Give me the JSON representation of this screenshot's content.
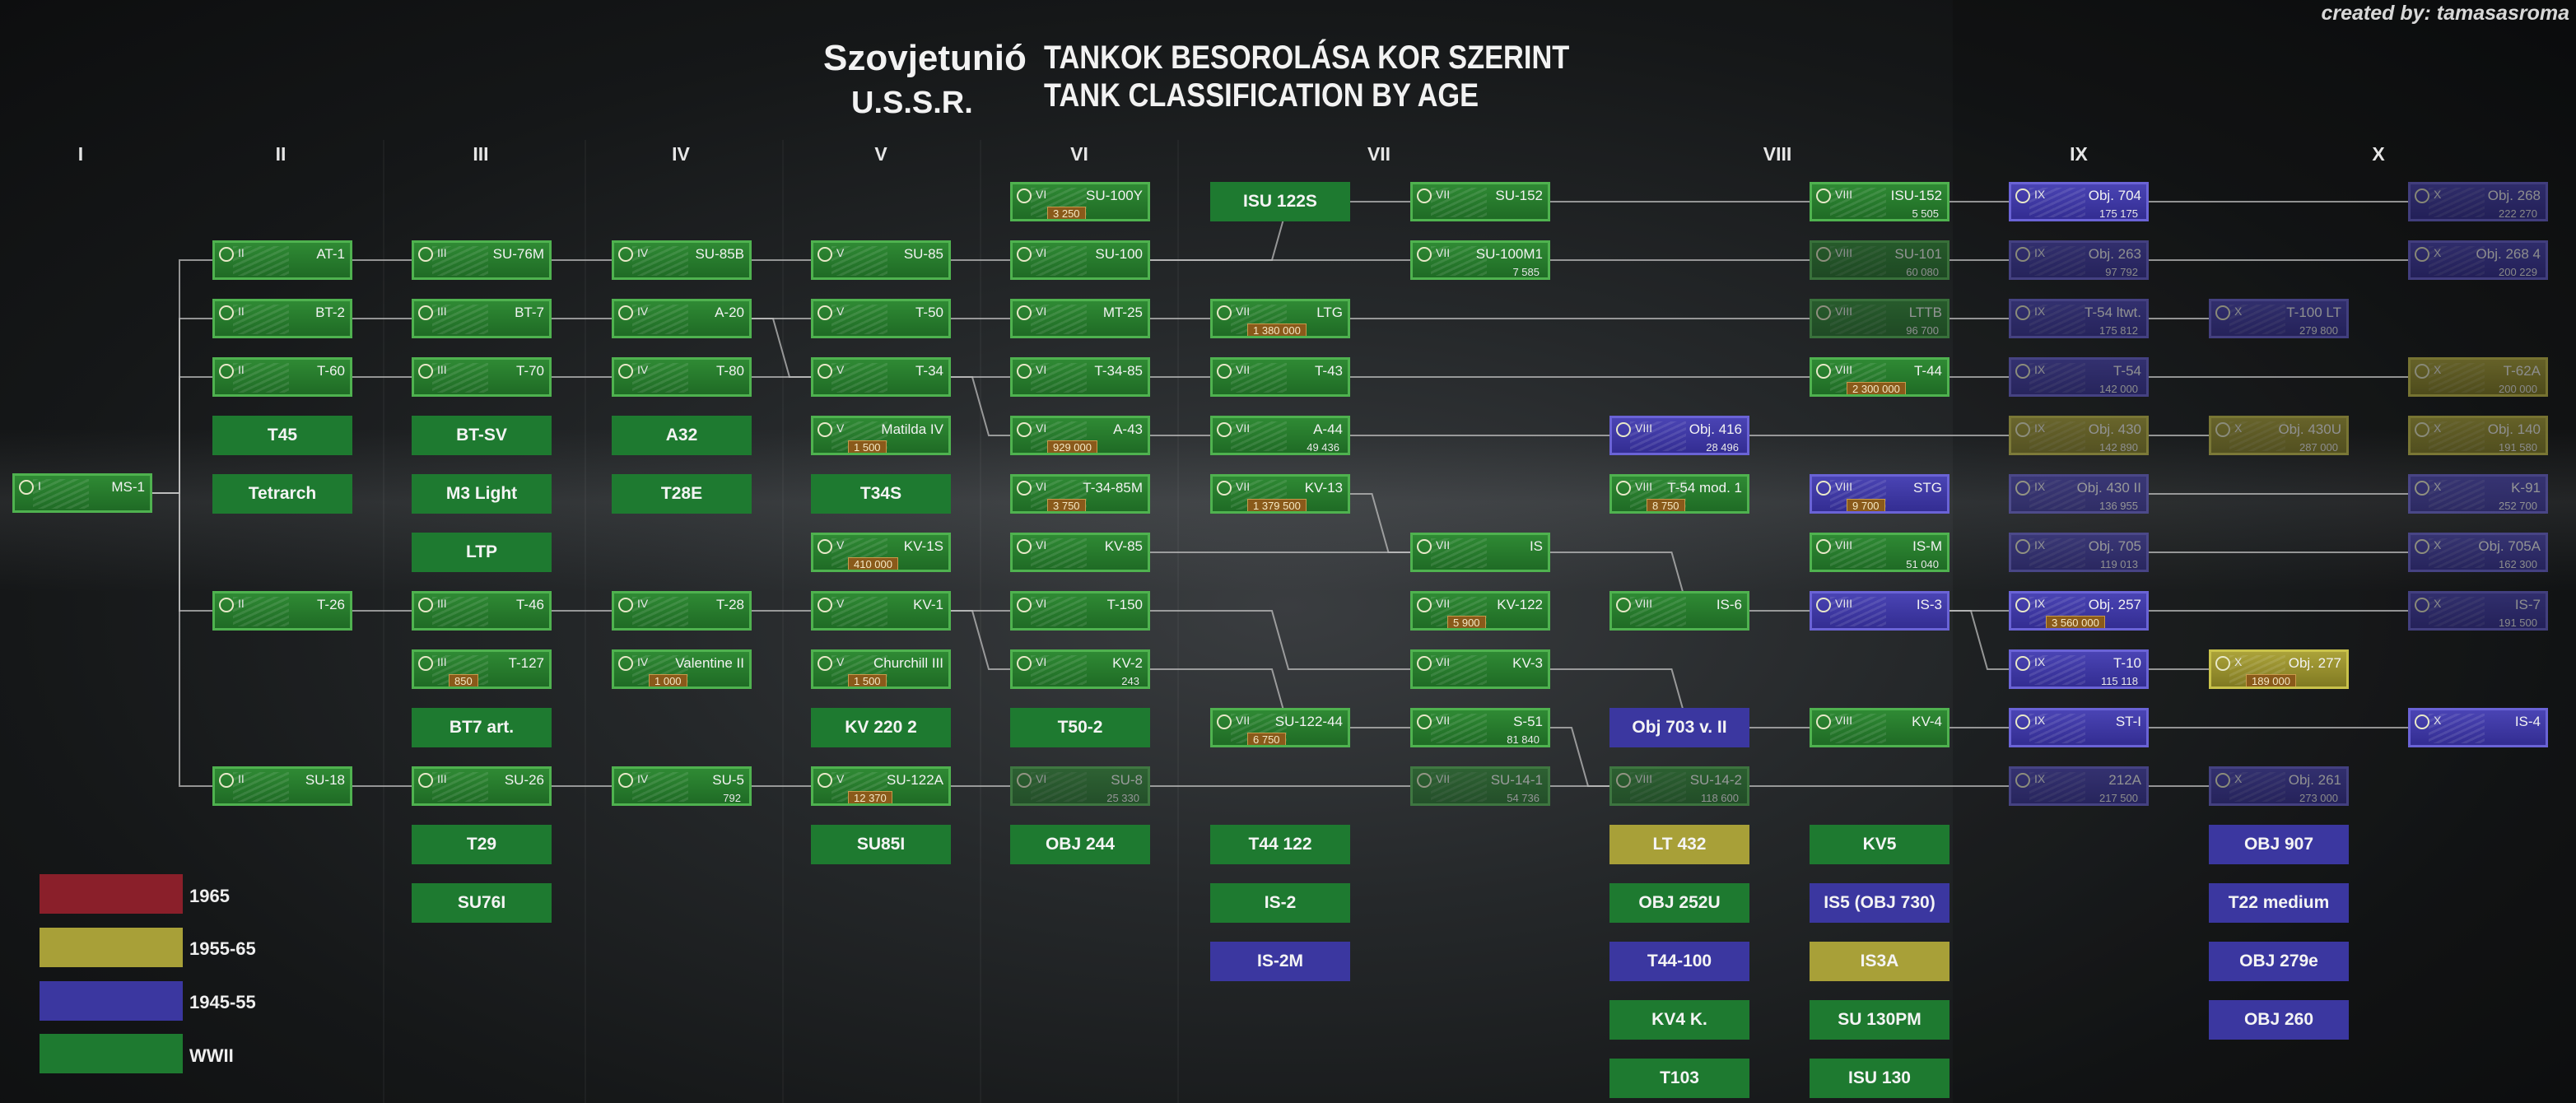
{
  "credit": "created by: tamasasroma",
  "titles": {
    "country_hu": "Szovjetunió",
    "country_en": "U.S.S.R.",
    "line1": "TANKOK BESOROLÁSA KOR SZERINT",
    "line2": "TANK CLASSIFICATION BY AGE"
  },
  "tiers": [
    "I",
    "II",
    "III",
    "IV",
    "V",
    "VI",
    "VII",
    "VIII",
    "IX",
    "X"
  ],
  "colors": {
    "WWII": "#1e7a30",
    "1945-55": "#3b37a0",
    "1955-65": "#a8a038",
    "1965": "#8a1f2a"
  },
  "legend": [
    {
      "label": "1965",
      "color": "#8a1f2a"
    },
    {
      "label": "1955-65",
      "color": "#a8a038"
    },
    {
      "label": "1945-55",
      "color": "#3b37a0"
    },
    {
      "label": "WWII",
      "color": "#1e7a30"
    }
  ],
  "tanks": [
    {
      "name": "MS-1",
      "tier": "I",
      "color": "green"
    },
    {
      "name": "AT-1",
      "tier": "II",
      "color": "green"
    },
    {
      "name": "BT-2",
      "tier": "II",
      "color": "green"
    },
    {
      "name": "T-60",
      "tier": "II",
      "color": "green"
    },
    {
      "name": "T-26",
      "tier": "II",
      "color": "green"
    },
    {
      "name": "SU-18",
      "tier": "II",
      "color": "green"
    },
    {
      "name": "SU-76M",
      "tier": "III",
      "color": "green"
    },
    {
      "name": "BT-7",
      "tier": "III",
      "color": "green"
    },
    {
      "name": "T-70",
      "tier": "III",
      "color": "green"
    },
    {
      "name": "T-46",
      "tier": "III",
      "color": "green"
    },
    {
      "name": "T-127",
      "tier": "III",
      "color": "green",
      "cost": "850"
    },
    {
      "name": "SU-26",
      "tier": "III",
      "color": "green"
    },
    {
      "name": "SU-85B",
      "tier": "IV",
      "color": "green"
    },
    {
      "name": "A-20",
      "tier": "IV",
      "color": "green"
    },
    {
      "name": "T-80",
      "tier": "IV",
      "color": "green"
    },
    {
      "name": "T-28",
      "tier": "IV",
      "color": "green"
    },
    {
      "name": "Valentine II",
      "tier": "IV",
      "color": "green",
      "cost": "1 000"
    },
    {
      "name": "SU-5",
      "tier": "IV",
      "color": "green",
      "xp": "792"
    },
    {
      "name": "SU-85",
      "tier": "V",
      "color": "green"
    },
    {
      "name": "T-50",
      "tier": "V",
      "color": "green"
    },
    {
      "name": "T-34",
      "tier": "V",
      "color": "green"
    },
    {
      "name": "Matilda IV",
      "tier": "V",
      "color": "green",
      "cost": "1 500"
    },
    {
      "name": "KV-1S",
      "tier": "V",
      "color": "green",
      "cost": "410 000"
    },
    {
      "name": "KV-1",
      "tier": "V",
      "color": "green"
    },
    {
      "name": "Churchill III",
      "tier": "V",
      "color": "green",
      "cost": "1 500"
    },
    {
      "name": "SU-122A",
      "tier": "V",
      "color": "green",
      "cost": "12 370"
    },
    {
      "name": "SU-100Y",
      "tier": "VI",
      "color": "green",
      "cost": "3 250"
    },
    {
      "name": "SU-100",
      "tier": "VI",
      "color": "green"
    },
    {
      "name": "MT-25",
      "tier": "VI",
      "color": "green"
    },
    {
      "name": "T-34-85",
      "tier": "VI",
      "color": "green"
    },
    {
      "name": "A-43",
      "tier": "VI",
      "color": "green",
      "cost": "929 000"
    },
    {
      "name": "T-34-85M",
      "tier": "VI",
      "color": "green",
      "cost": "3 750"
    },
    {
      "name": "KV-85",
      "tier": "VI",
      "color": "green"
    },
    {
      "name": "T-150",
      "tier": "VI",
      "color": "green"
    },
    {
      "name": "KV-2",
      "tier": "VI",
      "color": "green",
      "xp": "243"
    },
    {
      "name": "SU-8",
      "tier": "VI",
      "color": "green",
      "xp": "25 330",
      "faded": true
    },
    {
      "name": "LTG",
      "tier": "VII",
      "color": "green",
      "cost": "1 380 000"
    },
    {
      "name": "T-43",
      "tier": "VII",
      "color": "green"
    },
    {
      "name": "A-44",
      "tier": "VII",
      "color": "green",
      "xp": "49 436"
    },
    {
      "name": "KV-13",
      "tier": "VII",
      "color": "green",
      "cost": "1 379 500"
    },
    {
      "name": "SU-122-44",
      "tier": "VII",
      "color": "green",
      "cost": "6 750"
    },
    {
      "name": "SU-152",
      "tier": "VII",
      "color": "green"
    },
    {
      "name": "SU-100M1",
      "tier": "VII",
      "color": "green",
      "xp": "7 585"
    },
    {
      "name": "IS",
      "tier": "VII",
      "color": "green"
    },
    {
      "name": "KV-122",
      "tier": "VII",
      "color": "green",
      "cost": "5 900"
    },
    {
      "name": "KV-3",
      "tier": "VII",
      "color": "green"
    },
    {
      "name": "S-51",
      "tier": "VII",
      "color": "green",
      "xp": "81 840"
    },
    {
      "name": "SU-14-1",
      "tier": "VII",
      "color": "green",
      "xp": "54 736",
      "faded": true
    },
    {
      "name": "Obj. 416",
      "tier": "VIII",
      "color": "blue",
      "xp": "28 496"
    },
    {
      "name": "T-54 mod. 1",
      "tier": "VIII",
      "color": "green",
      "cost": "8 750"
    },
    {
      "name": "IS-6",
      "tier": "VIII",
      "color": "green"
    },
    {
      "name": "SU-14-2",
      "tier": "VIII",
      "color": "green",
      "xp": "118 600",
      "faded": true
    },
    {
      "name": "ISU-152",
      "tier": "VIII",
      "color": "green",
      "xp": "5 505"
    },
    {
      "name": "SU-101",
      "tier": "VIII",
      "color": "green",
      "xp": "60 080",
      "faded": true
    },
    {
      "name": "LTTB",
      "tier": "VIII",
      "color": "green",
      "xp": "96 700",
      "faded": true
    },
    {
      "name": "T-44",
      "tier": "VIII",
      "color": "green",
      "cost": "2 300 000"
    },
    {
      "name": "STG",
      "tier": "VIII",
      "color": "blue",
      "cost": "9 700"
    },
    {
      "name": "IS-M",
      "tier": "VIII",
      "color": "green",
      "xp": "51 040"
    },
    {
      "name": "IS-3",
      "tier": "VIII",
      "color": "blue"
    },
    {
      "name": "KV-4",
      "tier": "VIII",
      "color": "green"
    },
    {
      "name": "Obj. 704",
      "tier": "IX",
      "color": "blue",
      "xp": "175 175"
    },
    {
      "name": "Obj. 263",
      "tier": "IX",
      "color": "blue",
      "xp": "97 792",
      "faded": true
    },
    {
      "name": "T-54 ltwt.",
      "tier": "IX",
      "color": "blue",
      "xp": "175 812",
      "faded": true
    },
    {
      "name": "T-54",
      "tier": "IX",
      "color": "blue",
      "xp": "142 000",
      "faded": true
    },
    {
      "name": "Obj. 430",
      "tier": "IX",
      "color": "yellow",
      "xp": "142 890",
      "faded": true
    },
    {
      "name": "Obj. 430 II",
      "tier": "IX",
      "color": "blue",
      "xp": "136 955",
      "faded": true
    },
    {
      "name": "Obj. 705",
      "tier": "IX",
      "color": "blue",
      "xp": "119 013",
      "faded": true
    },
    {
      "name": "Obj. 257",
      "tier": "IX",
      "color": "blue",
      "cost": "3 560 000"
    },
    {
      "name": "T-10",
      "tier": "IX",
      "color": "blue",
      "xp": "115 118"
    },
    {
      "name": "ST-I",
      "tier": "IX",
      "color": "blue"
    },
    {
      "name": "212A",
      "tier": "IX",
      "color": "blue",
      "xp": "217 500",
      "faded": true
    },
    {
      "name": "T-100 LT",
      "tier": "X",
      "color": "blue",
      "xp": "279 800",
      "faded": true
    },
    {
      "name": "Obj. 430U",
      "tier": "X",
      "color": "yellow",
      "xp": "287 000",
      "faded": true
    },
    {
      "name": "Obj. 277",
      "tier": "X",
      "color": "yellow",
      "cost": "189 000"
    },
    {
      "name": "Obj. 261",
      "tier": "X",
      "color": "blue",
      "xp": "273 000",
      "faded": true
    },
    {
      "name": "Obj. 268",
      "tier": "X",
      "color": "blue",
      "xp": "222 270",
      "faded": true
    },
    {
      "name": "Obj. 268 4",
      "tier": "X",
      "color": "blue",
      "xp": "200 229",
      "faded": true
    },
    {
      "name": "T-62A",
      "tier": "X",
      "color": "yellow",
      "xp": "200 000",
      "faded": true
    },
    {
      "name": "Obj. 140",
      "tier": "X",
      "color": "yellow",
      "xp": "191 580",
      "faded": true
    },
    {
      "name": "K-91",
      "tier": "X",
      "color": "blue",
      "xp": "252 700",
      "faded": true
    },
    {
      "name": "Obj. 705A",
      "tier": "X",
      "color": "blue",
      "xp": "162 300",
      "faded": true
    },
    {
      "name": "IS-7",
      "tier": "X",
      "color": "blue",
      "xp": "191 500",
      "faded": true
    },
    {
      "name": "IS-4",
      "tier": "X",
      "color": "blue"
    }
  ],
  "placeholders": [
    {
      "name": "T45",
      "color": "green"
    },
    {
      "name": "Tetrarch",
      "color": "green"
    },
    {
      "name": "BT-SV",
      "color": "green"
    },
    {
      "name": "M3 Light",
      "color": "green"
    },
    {
      "name": "LTP",
      "color": "green"
    },
    {
      "name": "BT7 art.",
      "color": "green"
    },
    {
      "name": "T29",
      "color": "green"
    },
    {
      "name": "SU76I",
      "color": "green"
    },
    {
      "name": "A32",
      "color": "green"
    },
    {
      "name": "T28E",
      "color": "green"
    },
    {
      "name": "T34S",
      "color": "green"
    },
    {
      "name": "KV 220 2",
      "color": "green"
    },
    {
      "name": "SU85I",
      "color": "green"
    },
    {
      "name": "T50-2",
      "color": "green"
    },
    {
      "name": "OBJ 244",
      "color": "green"
    },
    {
      "name": "ISU 122S",
      "color": "green"
    },
    {
      "name": "T44 122",
      "color": "green"
    },
    {
      "name": "IS-2",
      "color": "green"
    },
    {
      "name": "IS-2M",
      "color": "blue"
    },
    {
      "name": "Obj 703 v. II",
      "color": "blue"
    },
    {
      "name": "LT 432",
      "color": "yellow"
    },
    {
      "name": "OBJ 252U",
      "color": "green"
    },
    {
      "name": "T44-100",
      "color": "blue"
    },
    {
      "name": "KV4 K.",
      "color": "green"
    },
    {
      "name": "T103",
      "color": "green"
    },
    {
      "name": "KV5",
      "color": "green"
    },
    {
      "name": "IS5 (OBJ 730)",
      "color": "blue"
    },
    {
      "name": "IS3A",
      "color": "yellow"
    },
    {
      "name": "SU 130PM",
      "color": "green"
    },
    {
      "name": "ISU 130",
      "color": "green"
    },
    {
      "name": "OBJ 907",
      "color": "blue"
    },
    {
      "name": "T22 medium",
      "color": "blue"
    },
    {
      "name": "OBJ 279e",
      "color": "blue"
    },
    {
      "name": "OBJ 260",
      "color": "blue"
    }
  ]
}
